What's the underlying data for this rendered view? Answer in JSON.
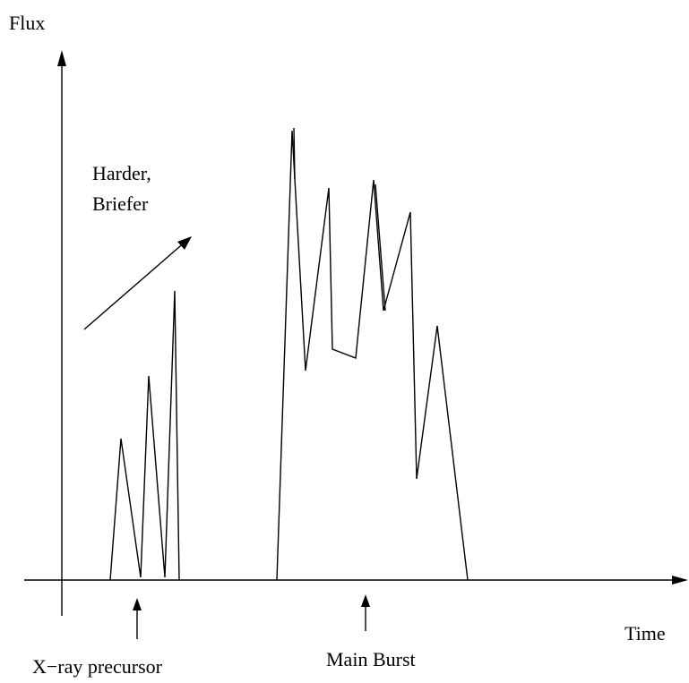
{
  "y_axis_label": "Flux",
  "x_axis_label": "Time",
  "annotation": {
    "line1": "Harder,",
    "line2": "Briefer"
  },
  "markers": {
    "precursor": "X−ray precursor",
    "main_burst": "Main Burst"
  }
}
